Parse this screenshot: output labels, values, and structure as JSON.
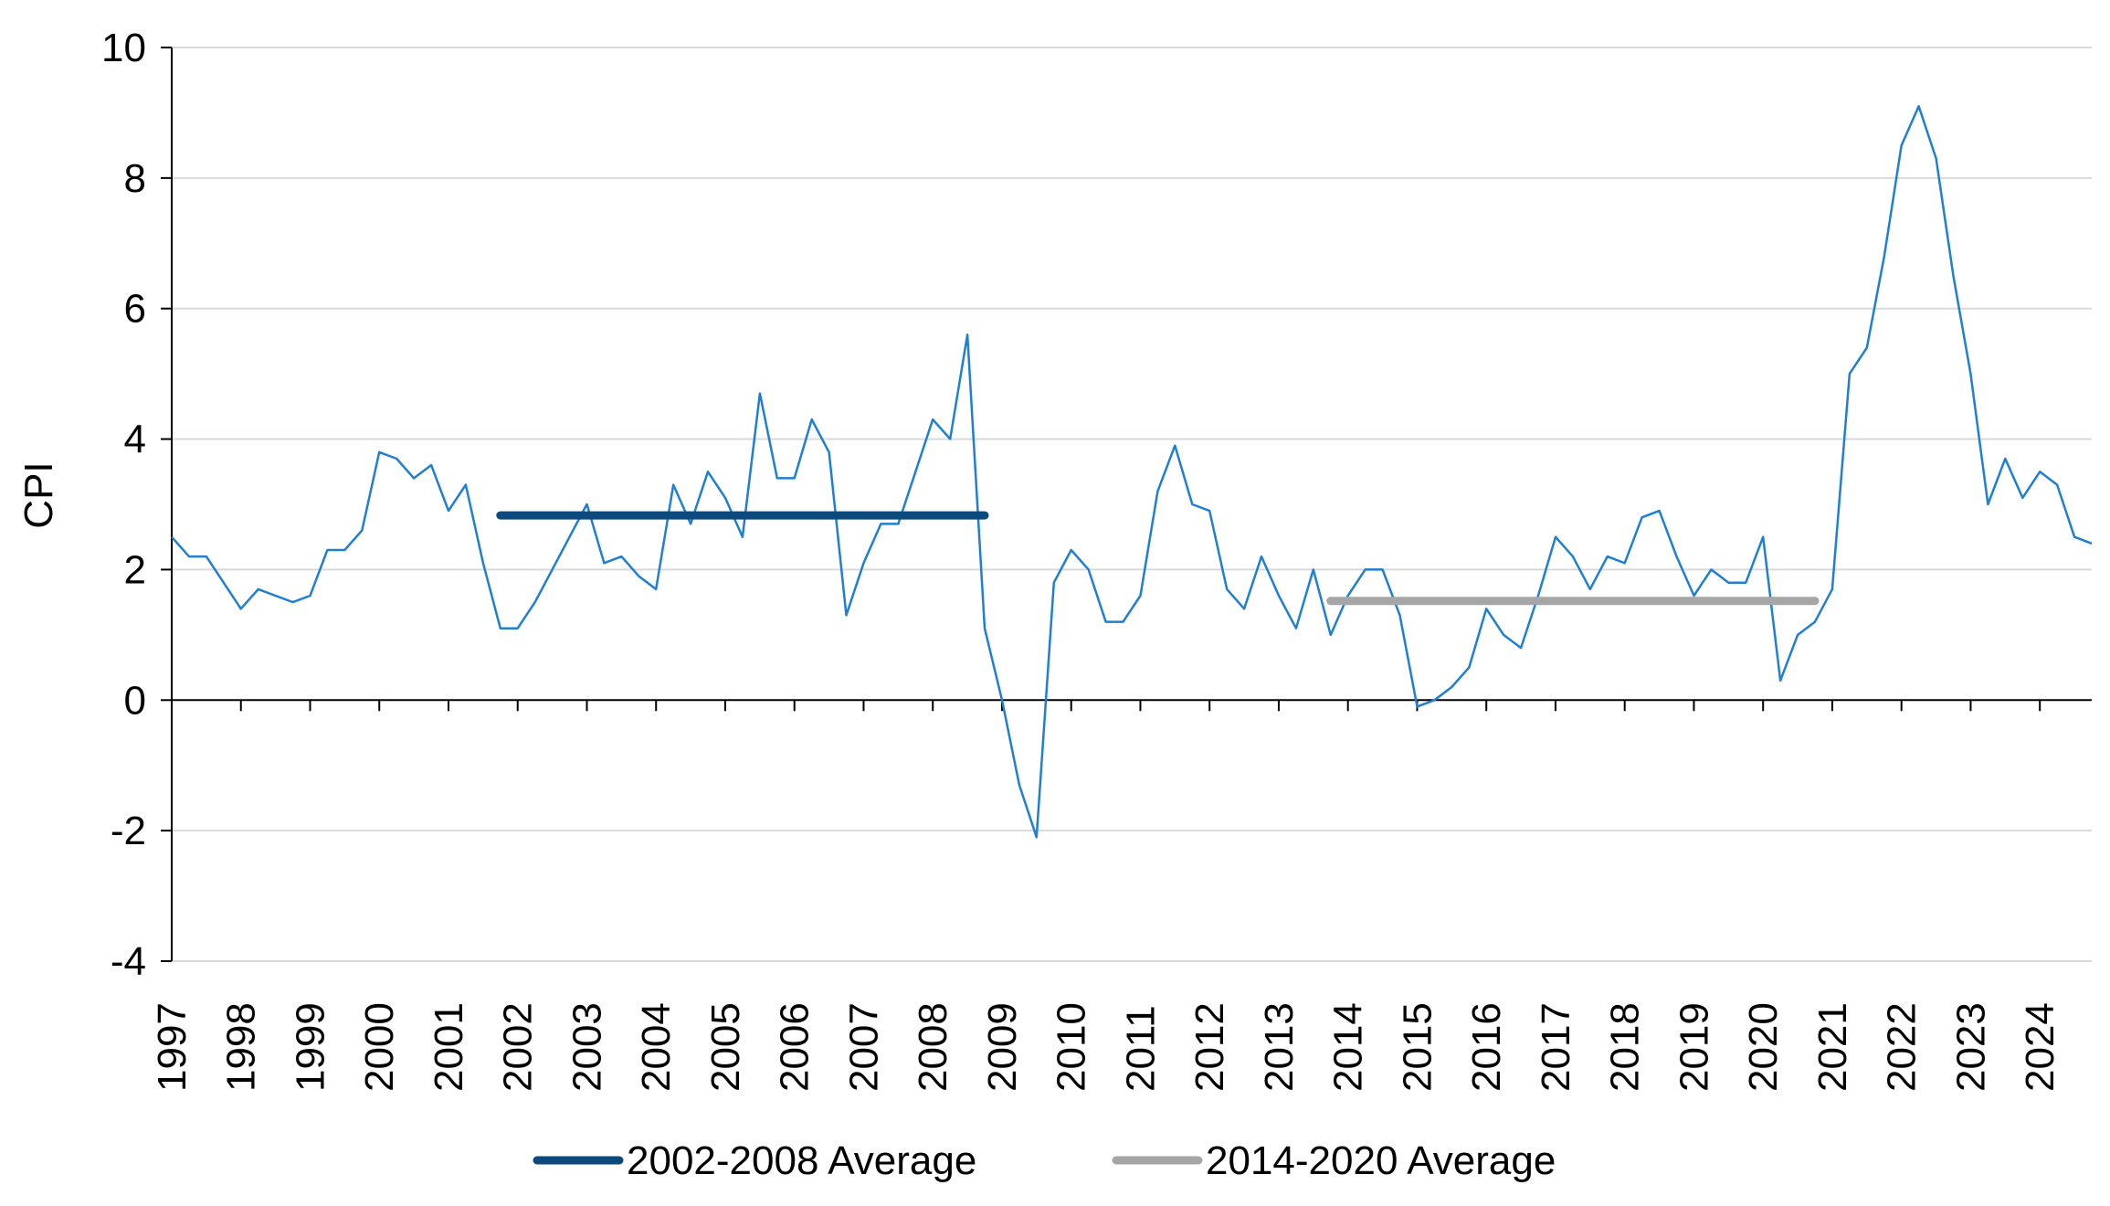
{
  "chart_data": {
    "type": "line",
    "title": "",
    "xlabel": "",
    "ylabel": "CPI",
    "ylim": [
      -4,
      10
    ],
    "yticks": [
      -4,
      -2,
      0,
      2,
      4,
      6,
      8,
      10
    ],
    "xlim": [
      1997,
      2024.75
    ],
    "xticks": [
      "1997",
      "1998",
      "1999",
      "2000",
      "2001",
      "2002",
      "2003",
      "2004",
      "2005",
      "2006",
      "2007",
      "2008",
      "2009",
      "2010",
      "2011",
      "2012",
      "2013",
      "2014",
      "2015",
      "2016",
      "2017",
      "2018",
      "2019",
      "2020",
      "2021",
      "2022",
      "2023",
      "2024"
    ],
    "grid": "horizontal",
    "legend_position": "bottom",
    "series": [
      {
        "name": "",
        "color": "#1f7fd2",
        "points": [
          [
            1997.0,
            2.5
          ],
          [
            1997.25,
            2.2
          ],
          [
            1997.5,
            2.2
          ],
          [
            1997.75,
            1.8
          ],
          [
            1998.0,
            1.4
          ],
          [
            1998.25,
            1.7
          ],
          [
            1998.5,
            1.6
          ],
          [
            1998.75,
            1.5
          ],
          [
            1999.0,
            1.6
          ],
          [
            1999.25,
            2.3
          ],
          [
            1999.5,
            2.3
          ],
          [
            1999.75,
            2.6
          ],
          [
            2000.0,
            3.8
          ],
          [
            2000.25,
            3.7
          ],
          [
            2000.5,
            3.4
          ],
          [
            2000.75,
            3.6
          ],
          [
            2001.0,
            2.9
          ],
          [
            2001.25,
            3.3
          ],
          [
            2001.5,
            2.1
          ],
          [
            2001.75,
            1.1
          ],
          [
            2002.0,
            1.1
          ],
          [
            2002.25,
            1.5
          ],
          [
            2002.5,
            2.0
          ],
          [
            2002.75,
            2.5
          ],
          [
            2003.0,
            3.0
          ],
          [
            2003.25,
            2.1
          ],
          [
            2003.5,
            2.2
          ],
          [
            2003.75,
            1.9
          ],
          [
            2004.0,
            1.7
          ],
          [
            2004.25,
            3.3
          ],
          [
            2004.5,
            2.7
          ],
          [
            2004.75,
            3.5
          ],
          [
            2005.0,
            3.1
          ],
          [
            2005.25,
            2.5
          ],
          [
            2005.5,
            4.7
          ],
          [
            2005.75,
            3.4
          ],
          [
            2006.0,
            3.4
          ],
          [
            2006.25,
            4.3
          ],
          [
            2006.5,
            3.8
          ],
          [
            2006.75,
            1.3
          ],
          [
            2007.0,
            2.1
          ],
          [
            2007.25,
            2.7
          ],
          [
            2007.5,
            2.7
          ],
          [
            2007.75,
            3.5
          ],
          [
            2008.0,
            4.3
          ],
          [
            2008.25,
            4.0
          ],
          [
            2008.5,
            5.6
          ],
          [
            2008.75,
            1.1
          ],
          [
            2009.0,
            0.0
          ],
          [
            2009.25,
            -1.3
          ],
          [
            2009.5,
            -2.1
          ],
          [
            2009.75,
            1.8
          ],
          [
            2010.0,
            2.3
          ],
          [
            2010.25,
            2.0
          ],
          [
            2010.5,
            1.2
          ],
          [
            2010.75,
            1.2
          ],
          [
            2011.0,
            1.6
          ],
          [
            2011.25,
            3.2
          ],
          [
            2011.5,
            3.9
          ],
          [
            2011.75,
            3.0
          ],
          [
            2012.0,
            2.9
          ],
          [
            2012.25,
            1.7
          ],
          [
            2012.5,
            1.4
          ],
          [
            2012.75,
            2.2
          ],
          [
            2013.0,
            1.6
          ],
          [
            2013.25,
            1.1
          ],
          [
            2013.5,
            2.0
          ],
          [
            2013.75,
            1.0
          ],
          [
            2014.0,
            1.6
          ],
          [
            2014.25,
            2.0
          ],
          [
            2014.5,
            2.0
          ],
          [
            2014.75,
            1.3
          ],
          [
            2015.0,
            -0.1
          ],
          [
            2015.25,
            0.0
          ],
          [
            2015.5,
            0.2
          ],
          [
            2015.75,
            0.5
          ],
          [
            2016.0,
            1.4
          ],
          [
            2016.25,
            1.0
          ],
          [
            2016.5,
            0.8
          ],
          [
            2016.75,
            1.6
          ],
          [
            2017.0,
            2.5
          ],
          [
            2017.25,
            2.2
          ],
          [
            2017.5,
            1.7
          ],
          [
            2017.75,
            2.2
          ],
          [
            2018.0,
            2.1
          ],
          [
            2018.25,
            2.8
          ],
          [
            2018.5,
            2.9
          ],
          [
            2018.75,
            2.2
          ],
          [
            2019.0,
            1.6
          ],
          [
            2019.25,
            2.0
          ],
          [
            2019.5,
            1.8
          ],
          [
            2019.75,
            1.8
          ],
          [
            2020.0,
            2.5
          ],
          [
            2020.25,
            0.3
          ],
          [
            2020.5,
            1.0
          ],
          [
            2020.75,
            1.2
          ],
          [
            2021.0,
            1.7
          ],
          [
            2021.25,
            5.0
          ],
          [
            2021.5,
            5.4
          ],
          [
            2021.75,
            6.8
          ],
          [
            2022.0,
            8.5
          ],
          [
            2022.25,
            9.1
          ],
          [
            2022.5,
            8.3
          ],
          [
            2022.75,
            6.5
          ],
          [
            2023.0,
            5.0
          ],
          [
            2023.25,
            3.0
          ],
          [
            2023.5,
            3.7
          ],
          [
            2023.75,
            3.1
          ],
          [
            2024.0,
            3.5
          ],
          [
            2024.25,
            3.3
          ],
          [
            2024.5,
            2.5
          ],
          [
            2024.75,
            2.4
          ]
        ]
      },
      {
        "name": "2002-2008 Average",
        "color": "#0c4a7e",
        "points": [
          [
            2001.75,
            2.83
          ],
          [
            2008.75,
            2.83
          ]
        ]
      },
      {
        "name": "2014-2020 Average",
        "color": "#a6a6a6",
        "points": [
          [
            2013.75,
            1.52
          ],
          [
            2020.75,
            1.52
          ]
        ]
      }
    ]
  }
}
